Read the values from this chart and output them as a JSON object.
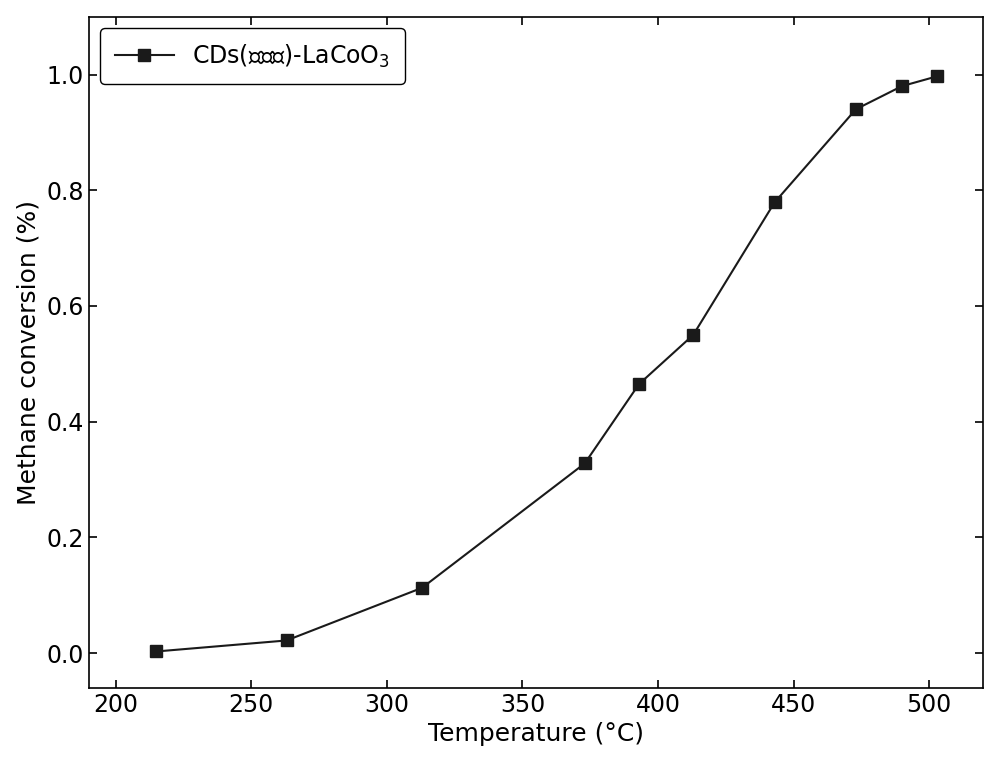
{
  "x": [
    215,
    263,
    313,
    373,
    393,
    413,
    443,
    473,
    490,
    503
  ],
  "y": [
    0.003,
    0.022,
    0.113,
    0.328,
    0.465,
    0.55,
    0.779,
    0.94,
    0.98,
    0.997
  ],
  "line_color": "#1a1a1a",
  "marker": "s",
  "marker_color": "#1a1a1a",
  "marker_size": 9,
  "line_width": 1.5,
  "xlabel": "Temperature (°C)",
  "ylabel": "Methane conversion (%)",
  "legend_label_pre": "CDs(丙三醇)-LaCoO",
  "legend_label_sub": "3",
  "xlim": [
    190,
    520
  ],
  "ylim": [
    -0.06,
    1.1
  ],
  "xticks": [
    200,
    250,
    300,
    350,
    400,
    450,
    500
  ],
  "yticks": [
    0.0,
    0.2,
    0.4,
    0.6,
    0.8,
    1.0
  ],
  "label_fontsize": 18,
  "tick_fontsize": 17,
  "legend_fontsize": 17,
  "background_color": "#ffffff"
}
